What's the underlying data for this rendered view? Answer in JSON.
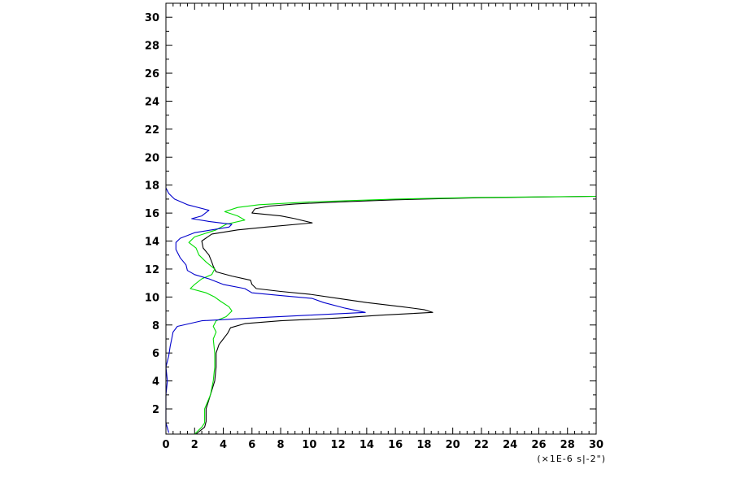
{
  "chart_data": {
    "type": "line",
    "title": "",
    "xlabel": "(×1E-6 s|-2\")",
    "ylabel": "",
    "xlim": [
      0,
      30
    ],
    "ylim": [
      0.2,
      31
    ],
    "x_ticks": [
      0,
      2,
      4,
      6,
      8,
      10,
      12,
      14,
      16,
      18,
      20,
      22,
      24,
      26,
      28,
      30
    ],
    "y_ticks": [
      2,
      4,
      6,
      8,
      10,
      12,
      14,
      16,
      18,
      20,
      22,
      24,
      26,
      28,
      30
    ],
    "grid": false,
    "legend": "none",
    "series": [
      {
        "color": "#000000",
        "points": [
          [
            2.1,
            0.2
          ],
          [
            2.7,
            0.7
          ],
          [
            2.8,
            1.1
          ],
          [
            2.8,
            2.0
          ],
          [
            3.1,
            3.0
          ],
          [
            3.4,
            4.0
          ],
          [
            3.5,
            5.0
          ],
          [
            3.5,
            6.0
          ],
          [
            3.7,
            6.6
          ],
          [
            4.0,
            7.0
          ],
          [
            4.3,
            7.4
          ],
          [
            4.5,
            7.8
          ],
          [
            5.5,
            8.1
          ],
          [
            8.0,
            8.3
          ],
          [
            12.0,
            8.5
          ],
          [
            15.0,
            8.7
          ],
          [
            18.6,
            8.9
          ],
          [
            18.0,
            9.1
          ],
          [
            16.5,
            9.3
          ],
          [
            14.0,
            9.6
          ],
          [
            12.0,
            9.9
          ],
          [
            10.0,
            10.2
          ],
          [
            8.0,
            10.4
          ],
          [
            6.3,
            10.6
          ],
          [
            6.0,
            10.9
          ],
          [
            5.9,
            11.2
          ],
          [
            4.6,
            11.5
          ],
          [
            3.5,
            11.8
          ],
          [
            3.3,
            12.2
          ],
          [
            3.2,
            12.5
          ],
          [
            3.0,
            13.0
          ],
          [
            2.6,
            13.5
          ],
          [
            2.5,
            14.0
          ],
          [
            3.2,
            14.5
          ],
          [
            5.0,
            14.8
          ],
          [
            7.0,
            15.0
          ],
          [
            10.2,
            15.3
          ],
          [
            9.0,
            15.6
          ],
          [
            8.0,
            15.8
          ],
          [
            6.0,
            16.0
          ],
          [
            6.2,
            16.3
          ],
          [
            7.2,
            16.5
          ],
          [
            9.0,
            16.65
          ],
          [
            12.0,
            16.8
          ],
          [
            16.0,
            16.95
          ],
          [
            22.0,
            17.1
          ],
          [
            30.0,
            17.2
          ]
        ]
      },
      {
        "color": "#00dd00",
        "points": [
          [
            2.0,
            0.2
          ],
          [
            2.5,
            0.7
          ],
          [
            2.7,
            1.0
          ],
          [
            2.7,
            2.0
          ],
          [
            3.1,
            3.0
          ],
          [
            3.3,
            4.0
          ],
          [
            3.4,
            5.0
          ],
          [
            3.4,
            6.0
          ],
          [
            3.3,
            7.0
          ],
          [
            3.5,
            7.5
          ],
          [
            3.3,
            7.9
          ],
          [
            3.5,
            8.3
          ],
          [
            4.2,
            8.6
          ],
          [
            4.6,
            9.0
          ],
          [
            4.4,
            9.3
          ],
          [
            3.8,
            9.7
          ],
          [
            3.4,
            10.0
          ],
          [
            2.8,
            10.3
          ],
          [
            1.7,
            10.6
          ],
          [
            2.0,
            10.9
          ],
          [
            2.5,
            11.3
          ],
          [
            3.2,
            11.6
          ],
          [
            3.4,
            12.0
          ],
          [
            2.8,
            12.5
          ],
          [
            2.3,
            13.0
          ],
          [
            2.1,
            13.5
          ],
          [
            1.6,
            13.9
          ],
          [
            2.0,
            14.3
          ],
          [
            3.5,
            14.8
          ],
          [
            4.2,
            15.2
          ],
          [
            5.5,
            15.5
          ],
          [
            5.0,
            15.8
          ],
          [
            4.1,
            16.1
          ],
          [
            5.0,
            16.4
          ],
          [
            6.5,
            16.6
          ],
          [
            10.0,
            16.8
          ],
          [
            16.0,
            17.0
          ],
          [
            22.0,
            17.12
          ],
          [
            30.0,
            17.2
          ]
        ]
      },
      {
        "color": "#0000cc",
        "points": [
          [
            0.2,
            0.3
          ],
          [
            0.0,
            1.0
          ],
          [
            0.0,
            3.0
          ],
          [
            0.1,
            4.0
          ],
          [
            0.0,
            5.0
          ],
          [
            0.2,
            5.8
          ],
          [
            0.3,
            6.5
          ],
          [
            0.4,
            7.0
          ],
          [
            0.5,
            7.5
          ],
          [
            0.8,
            7.9
          ],
          [
            2.5,
            8.3
          ],
          [
            6.0,
            8.5
          ],
          [
            10.0,
            8.7
          ],
          [
            13.9,
            8.9
          ],
          [
            12.5,
            9.2
          ],
          [
            11.0,
            9.6
          ],
          [
            10.2,
            9.9
          ],
          [
            8.0,
            10.1
          ],
          [
            6.0,
            10.3
          ],
          [
            5.5,
            10.6
          ],
          [
            4.0,
            10.9
          ],
          [
            3.0,
            11.3
          ],
          [
            2.0,
            11.6
          ],
          [
            1.5,
            11.9
          ],
          [
            1.4,
            12.3
          ],
          [
            1.0,
            12.8
          ],
          [
            0.7,
            13.4
          ],
          [
            0.7,
            13.9
          ],
          [
            1.0,
            14.2
          ],
          [
            2.0,
            14.6
          ],
          [
            4.4,
            15.0
          ],
          [
            4.6,
            15.2
          ],
          [
            3.0,
            15.4
          ],
          [
            1.8,
            15.6
          ],
          [
            2.5,
            15.8
          ],
          [
            3.0,
            16.2
          ],
          [
            1.5,
            16.6
          ],
          [
            0.6,
            17.0
          ],
          [
            0.2,
            17.4
          ],
          [
            0.0,
            17.8
          ]
        ]
      }
    ]
  }
}
